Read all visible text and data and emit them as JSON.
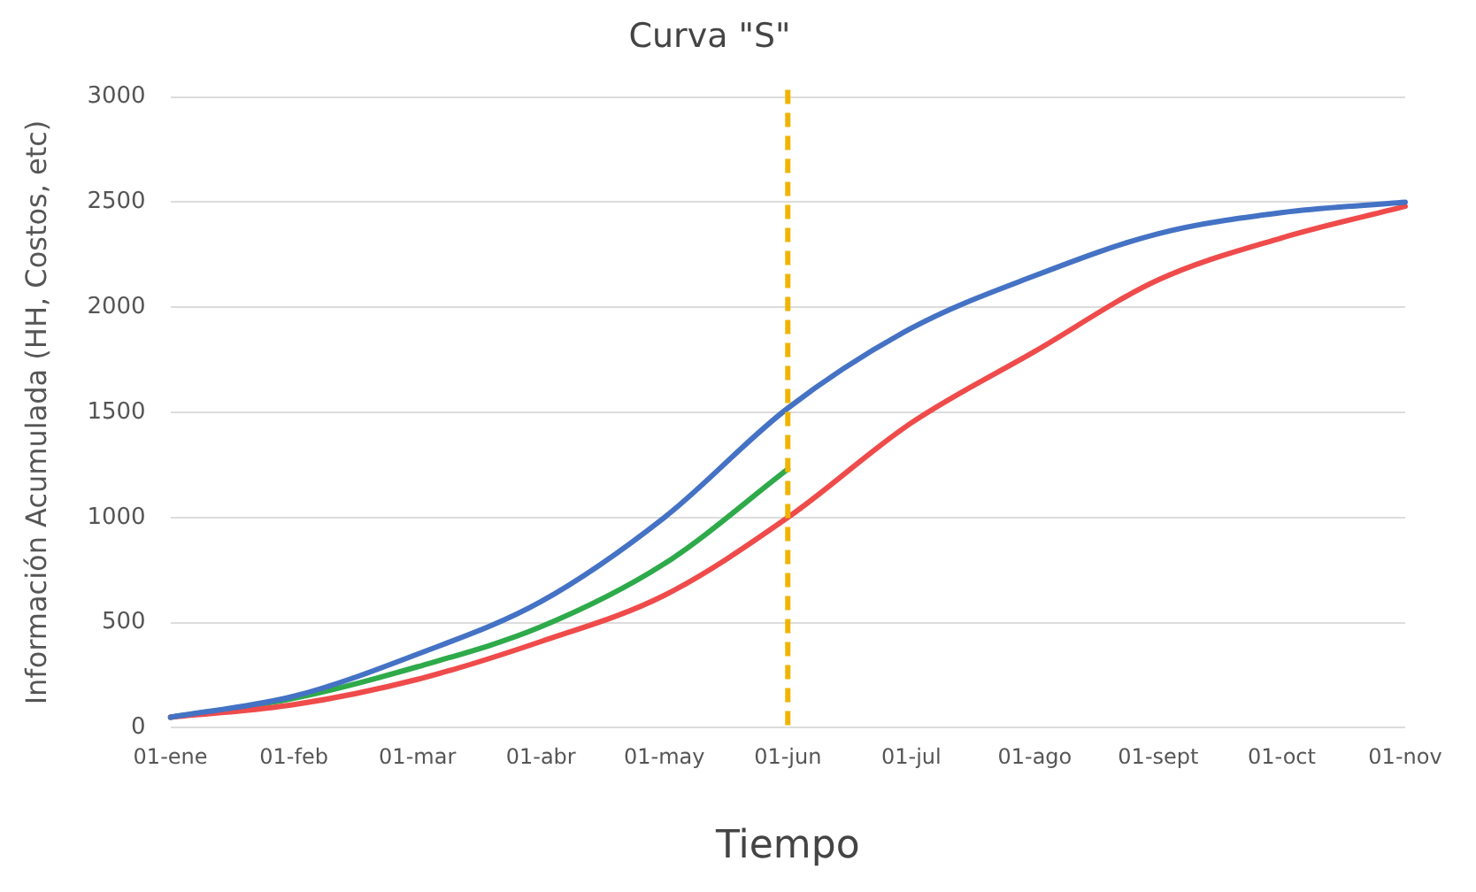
{
  "chart_data": {
    "type": "line",
    "title": "Curva \"S\"",
    "xlabel": "Tiempo",
    "ylabel": "Información Acumulada (HH, Costos, etc)",
    "categories": [
      "01-ene",
      "01-feb",
      "01-mar",
      "01-abr",
      "01-may",
      "01-jun",
      "01-jul",
      "01-ago",
      "01-sept",
      "01-oct",
      "01-nov"
    ],
    "series": [
      {
        "color": "#4472c4",
        "values": [
          50,
          150,
          350,
          600,
          1000,
          1520,
          1900,
          2150,
          2350,
          2450,
          2500
        ]
      },
      {
        "color": "#ef4b4b",
        "values": [
          50,
          110,
          230,
          410,
          630,
          1000,
          1450,
          1790,
          2130,
          2330,
          2480
        ]
      },
      {
        "color": "#2eaa4a",
        "values": [
          50,
          140,
          290,
          480,
          780,
          1230,
          null,
          null,
          null,
          null,
          null
        ]
      }
    ],
    "ylim": [
      0,
      3000
    ],
    "yticks": [
      0,
      500,
      1000,
      1500,
      2000,
      2500,
      3000
    ],
    "grid": "y",
    "legend": false,
    "marker": "none",
    "line_style": "solid",
    "ref_lines": [
      {
        "axis": "x",
        "value": "01-jun",
        "color": "#f0b400",
        "line_style": "dashed"
      }
    ]
  }
}
